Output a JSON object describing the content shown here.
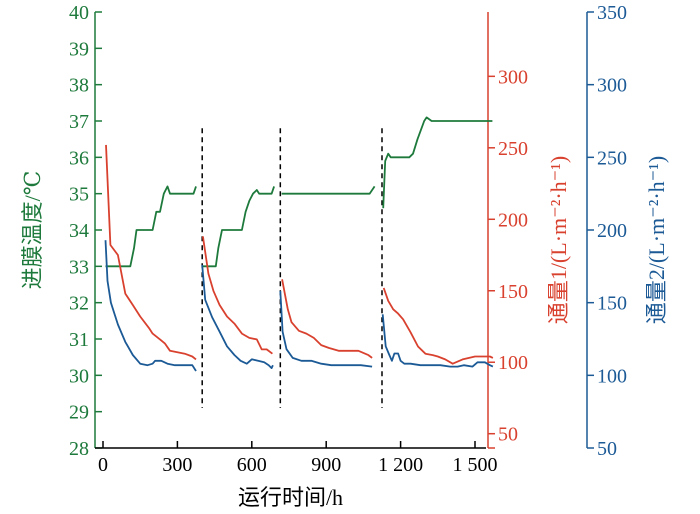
{
  "chart_data": {
    "type": "line",
    "title": "",
    "xlabel": "运行时间/h",
    "xlim": [
      -20,
      1620
    ],
    "x_ticks": [
      {
        "value": 0,
        "label": "0"
      },
      {
        "value": 300,
        "label": "300"
      },
      {
        "value": 600,
        "label": "600"
      },
      {
        "value": 900,
        "label": "900"
      },
      {
        "value": 1200,
        "label": "1 200"
      },
      {
        "value": 1500,
        "label": "1 500"
      }
    ],
    "y_axes": {
      "left": {
        "label": "进膜温度/℃",
        "range": [
          28,
          40
        ],
        "ticks": [
          28,
          29,
          30,
          31,
          32,
          33,
          34,
          35,
          36,
          37,
          38,
          39,
          40
        ],
        "color": "#1e7a3c"
      },
      "right1": {
        "label": "通量1/(L·m⁻²·h⁻¹)",
        "range": [
          40,
          345
        ],
        "ticks": [
          50,
          100,
          150,
          200,
          250,
          300
        ],
        "color": "#d9412f"
      },
      "right2": {
        "label": "通量2/(L·m⁻²·h⁻¹)",
        "range": [
          50,
          350
        ],
        "ticks": [
          50,
          100,
          150,
          200,
          250,
          300,
          350
        ],
        "color": "#1c5a96"
      }
    },
    "cleaning_lines_x": [
      400,
      715,
      1125
    ],
    "series": [
      {
        "axis": "left",
        "color": "#1e7a3c",
        "segments": [
          [
            [
              10,
              33
            ],
            [
              110,
              33
            ],
            [
              125,
              33.5
            ],
            [
              135,
              34
            ],
            [
              200,
              34
            ],
            [
              215,
              34.5
            ],
            [
              230,
              34.5
            ],
            [
              245,
              35
            ],
            [
              260,
              35.2
            ],
            [
              270,
              35
            ],
            [
              340,
              35
            ],
            [
              365,
              35
            ],
            [
              375,
              35.2
            ]
          ],
          [
            [
              400,
              33
            ],
            [
              455,
              33
            ],
            [
              465,
              33.5
            ],
            [
              480,
              34
            ],
            [
              545,
              34
            ],
            [
              560,
              34
            ],
            [
              575,
              34.5
            ],
            [
              590,
              34.8
            ],
            [
              605,
              35
            ],
            [
              620,
              35.1
            ],
            [
              630,
              35
            ],
            [
              680,
              35
            ],
            [
              690,
              35.2
            ]
          ],
          [
            [
              720,
              35
            ],
            [
              1075,
              35
            ],
            [
              1095,
              35.2
            ]
          ],
          [
            [
              1130,
              34.6
            ],
            [
              1138,
              35.9
            ],
            [
              1150,
              36.1
            ],
            [
              1160,
              36
            ],
            [
              1235,
              36
            ],
            [
              1250,
              36.1
            ],
            [
              1268,
              36.5
            ],
            [
              1295,
              37
            ],
            [
              1305,
              37.1
            ],
            [
              1325,
              37
            ],
            [
              1400,
              37
            ],
            [
              1500,
              37
            ],
            [
              1570,
              37
            ]
          ]
        ]
      },
      {
        "axis": "right1",
        "color": "#d9412f",
        "segments": [
          [
            [
              12,
              252
            ],
            [
              30,
              182
            ],
            [
              60,
              175
            ],
            [
              90,
              148
            ],
            [
              120,
              140
            ],
            [
              150,
              132
            ],
            [
              185,
              124
            ],
            [
              200,
              120
            ],
            [
              230,
              116
            ],
            [
              250,
              113
            ],
            [
              270,
              108
            ],
            [
              300,
              107
            ],
            [
              330,
              106
            ],
            [
              360,
              104
            ],
            [
              375,
              102
            ]
          ],
          [
            [
              403,
              188
            ],
            [
              425,
              162
            ],
            [
              445,
              150
            ],
            [
              470,
              140
            ],
            [
              500,
              132
            ],
            [
              530,
              127
            ],
            [
              560,
              120
            ],
            [
              590,
              117
            ],
            [
              620,
              116
            ],
            [
              640,
              109
            ],
            [
              660,
              109
            ],
            [
              683,
              106
            ]
          ],
          [
            [
              722,
              158
            ],
            [
              745,
              137
            ],
            [
              760,
              128
            ],
            [
              790,
              122
            ],
            [
              820,
              120
            ],
            [
              850,
              117
            ],
            [
              880,
              112
            ],
            [
              910,
              110
            ],
            [
              950,
              108
            ],
            [
              990,
              108
            ],
            [
              1030,
              108
            ],
            [
              1070,
              105
            ],
            [
              1085,
              103
            ]
          ],
          [
            [
              1132,
              152
            ],
            [
              1150,
              143
            ],
            [
              1170,
              137
            ],
            [
              1190,
              134
            ],
            [
              1210,
              130
            ],
            [
              1240,
              121
            ],
            [
              1270,
              111
            ],
            [
              1300,
              106
            ],
            [
              1330,
              105
            ],
            [
              1350,
              104
            ],
            [
              1380,
              102
            ],
            [
              1410,
              99
            ],
            [
              1450,
              102
            ],
            [
              1500,
              104
            ],
            [
              1560,
              104
            ],
            [
              1572,
              103
            ]
          ]
        ]
      },
      {
        "axis": "right2",
        "color": "#1c5a96",
        "segments": [
          [
            [
              10,
              193
            ],
            [
              18,
              165
            ],
            [
              32,
              150
            ],
            [
              60,
              135
            ],
            [
              90,
              123
            ],
            [
              120,
              114
            ],
            [
              150,
              108
            ],
            [
              180,
              107
            ],
            [
              200,
              108
            ],
            [
              210,
              110
            ],
            [
              235,
              110
            ],
            [
              260,
              108
            ],
            [
              290,
              107
            ],
            [
              330,
              107
            ],
            [
              360,
              107
            ],
            [
              375,
              103
            ]
          ],
          [
            [
              400,
              176
            ],
            [
              412,
              152
            ],
            [
              440,
              140
            ],
            [
              470,
              130
            ],
            [
              500,
              120
            ],
            [
              530,
              114
            ],
            [
              555,
              110
            ],
            [
              580,
              108
            ],
            [
              600,
              111
            ],
            [
              625,
              110
            ],
            [
              650,
              109
            ],
            [
              668,
              107
            ],
            [
              680,
              105
            ],
            [
              685,
              107
            ]
          ],
          [
            [
              715,
              158
            ],
            [
              724,
              130
            ],
            [
              740,
              118
            ],
            [
              765,
              112
            ],
            [
              800,
              110
            ],
            [
              840,
              110
            ],
            [
              880,
              108
            ],
            [
              920,
              107
            ],
            [
              960,
              107
            ],
            [
              1000,
              107
            ],
            [
              1040,
              107
            ],
            [
              1085,
              106
            ]
          ],
          [
            [
              1128,
              142
            ],
            [
              1140,
              120
            ],
            [
              1152,
              115
            ],
            [
              1165,
              110
            ],
            [
              1175,
              115
            ],
            [
              1190,
              115
            ],
            [
              1200,
              110
            ],
            [
              1215,
              108
            ],
            [
              1240,
              108
            ],
            [
              1280,
              107
            ],
            [
              1320,
              107
            ],
            [
              1360,
              107
            ],
            [
              1400,
              106
            ],
            [
              1430,
              106
            ],
            [
              1455,
              107
            ],
            [
              1490,
              106
            ],
            [
              1510,
              109
            ],
            [
              1540,
              109
            ],
            [
              1560,
              107
            ],
            [
              1572,
              106
            ]
          ]
        ]
      }
    ]
  }
}
